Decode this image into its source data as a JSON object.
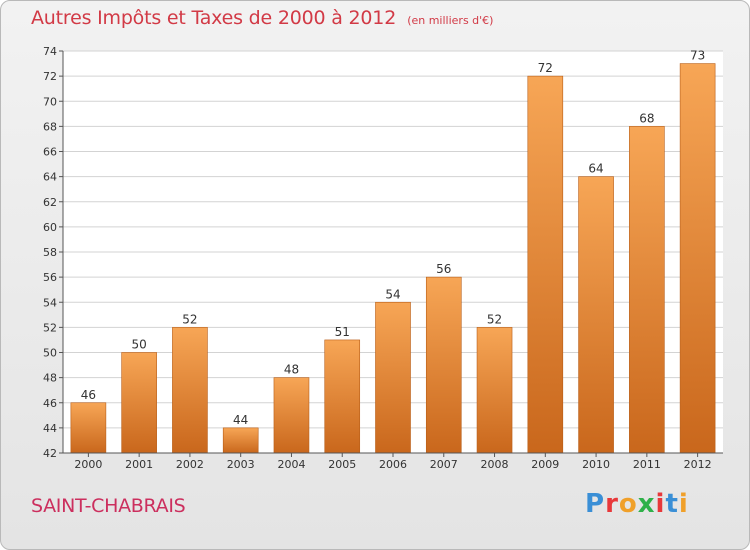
{
  "header": {
    "title": "Autres Impôts et Taxes de 2000 à 2012",
    "unit": "(en milliers d'€)"
  },
  "footer": {
    "location": "SAINT-CHABRAIS",
    "brand": "Proxiti",
    "brand_colors": [
      "#3a8fd6",
      "#e8383a",
      "#f0a02a",
      "#2fb14a",
      "#e8383a",
      "#3a8fd6",
      "#f0a02a"
    ]
  },
  "colors": {
    "bar_light": "#f7a656",
    "bar_dark": "#c9671c",
    "grid": "#d3d3d3",
    "text": "#333333",
    "title": "#d23a46"
  },
  "chart_data": {
    "type": "bar",
    "title": "Autres Impôts et Taxes de 2000 à 2012",
    "subtitle": "(en milliers d'€)",
    "xlabel": "",
    "ylabel": "",
    "categories": [
      "2000",
      "2001",
      "2002",
      "2003",
      "2004",
      "2005",
      "2006",
      "2007",
      "2008",
      "2009",
      "2010",
      "2011",
      "2012"
    ],
    "values": [
      46,
      50,
      52,
      44,
      48,
      51,
      54,
      56,
      52,
      72,
      64,
      68,
      73
    ],
    "data_labels": [
      "46",
      "50",
      "52",
      "44",
      "48",
      "51",
      "54",
      "56",
      "52",
      "72",
      "64",
      "68",
      "73"
    ],
    "ylim": [
      42,
      74
    ],
    "yticks": [
      42,
      44,
      46,
      48,
      50,
      52,
      54,
      56,
      58,
      60,
      62,
      64,
      66,
      68,
      70,
      72,
      74
    ],
    "grid": true,
    "legend": "none"
  }
}
